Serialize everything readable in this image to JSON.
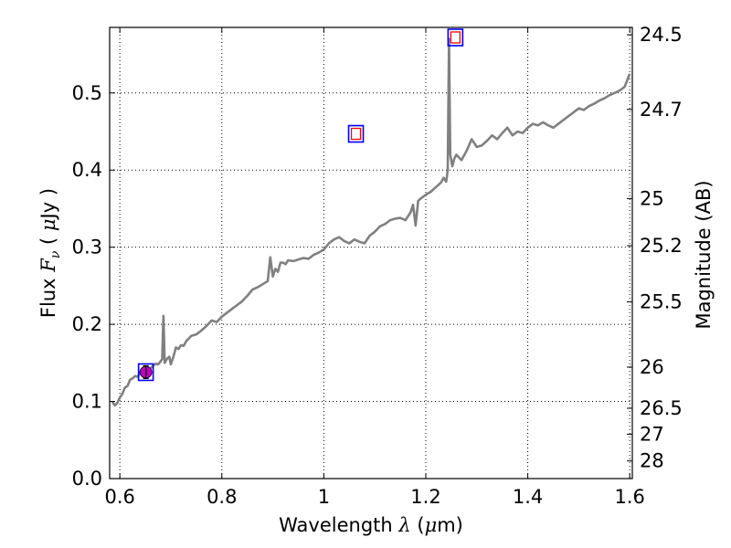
{
  "chart_data": {
    "type": "line",
    "xlabel_prefix": "Wavelength ",
    "xlabel_var": "λ",
    "xlabel_unit_open": " (",
    "xlabel_unit_mu": "μ",
    "xlabel_unit_close": "m)",
    "ylabel_prefix": "Flux ",
    "ylabel_var_main": "F",
    "ylabel_var_sub": "ν",
    "ylabel_unit_open": " ( ",
    "ylabel_unit_mu": "μ",
    "ylabel_unit_close": "Jy )",
    "y2label": "Magnitude (AB)",
    "xlim": [
      0.58,
      1.605
    ],
    "ylim": [
      0.0,
      0.585
    ],
    "grid": true,
    "x_ticks": [
      0.6,
      0.8,
      1.0,
      1.2,
      1.4,
      1.6
    ],
    "x_tick_labels": [
      "0.6",
      "0.8",
      "1",
      "1.2",
      "1.4",
      "1.6"
    ],
    "y_ticks": [
      0.0,
      0.1,
      0.2,
      0.3,
      0.4,
      0.5
    ],
    "y_tick_labels": [
      "0.0",
      "0.1",
      "0.2",
      "0.3",
      "0.4",
      "0.5"
    ],
    "y2_ticks": [
      {
        "label": "24.5",
        "mag": 24.5
      },
      {
        "label": "24.7",
        "mag": 24.7
      },
      {
        "label": "25",
        "mag": 25.0
      },
      {
        "label": "25.2",
        "mag": 25.2
      },
      {
        "label": "25.5",
        "mag": 25.5
      },
      {
        "label": "26",
        "mag": 26.0
      },
      {
        "label": "26.5",
        "mag": 26.5
      },
      {
        "label": "27",
        "mag": 27.0
      },
      {
        "label": "28",
        "mag": 28.0
      }
    ],
    "series": [
      {
        "kind": "spectrum",
        "color": "#808080",
        "x": [
          0.585,
          0.59,
          0.595,
          0.6,
          0.605,
          0.61,
          0.615,
          0.62,
          0.625,
          0.63,
          0.635,
          0.64,
          0.645,
          0.65,
          0.655,
          0.66,
          0.665,
          0.67,
          0.675,
          0.68,
          0.683,
          0.6855,
          0.688,
          0.692,
          0.697,
          0.7,
          0.705,
          0.71,
          0.715,
          0.72,
          0.725,
          0.73,
          0.74,
          0.75,
          0.76,
          0.77,
          0.78,
          0.79,
          0.8,
          0.81,
          0.82,
          0.83,
          0.84,
          0.85,
          0.86,
          0.87,
          0.88,
          0.89,
          0.895,
          0.9,
          0.905,
          0.91,
          0.915,
          0.92,
          0.925,
          0.93,
          0.94,
          0.95,
          0.96,
          0.97,
          0.98,
          0.99,
          1.0,
          1.01,
          1.02,
          1.03,
          1.04,
          1.05,
          1.06,
          1.07,
          1.08,
          1.09,
          1.1,
          1.11,
          1.12,
          1.13,
          1.14,
          1.15,
          1.16,
          1.17,
          1.175,
          1.18,
          1.185,
          1.19,
          1.2,
          1.21,
          1.22,
          1.23,
          1.235,
          1.24,
          1.243,
          1.2455,
          1.248,
          1.252,
          1.256,
          1.26,
          1.27,
          1.28,
          1.29,
          1.3,
          1.31,
          1.32,
          1.33,
          1.34,
          1.35,
          1.36,
          1.37,
          1.38,
          1.39,
          1.4,
          1.41,
          1.42,
          1.43,
          1.44,
          1.45,
          1.46,
          1.47,
          1.48,
          1.49,
          1.5,
          1.51,
          1.52,
          1.53,
          1.54,
          1.55,
          1.56,
          1.57,
          1.58,
          1.59,
          1.6
        ],
        "y": [
          0.1,
          0.095,
          0.098,
          0.105,
          0.11,
          0.118,
          0.12,
          0.128,
          0.13,
          0.133,
          0.132,
          0.138,
          0.14,
          0.138,
          0.142,
          0.143,
          0.146,
          0.149,
          0.148,
          0.152,
          0.155,
          0.211,
          0.15,
          0.155,
          0.158,
          0.148,
          0.158,
          0.17,
          0.168,
          0.173,
          0.172,
          0.178,
          0.185,
          0.187,
          0.192,
          0.198,
          0.205,
          0.203,
          0.21,
          0.215,
          0.22,
          0.225,
          0.23,
          0.237,
          0.245,
          0.248,
          0.252,
          0.256,
          0.287,
          0.262,
          0.272,
          0.268,
          0.28,
          0.28,
          0.278,
          0.283,
          0.282,
          0.284,
          0.286,
          0.285,
          0.29,
          0.293,
          0.297,
          0.305,
          0.31,
          0.313,
          0.308,
          0.305,
          0.31,
          0.307,
          0.305,
          0.315,
          0.32,
          0.327,
          0.33,
          0.335,
          0.337,
          0.338,
          0.335,
          0.345,
          0.355,
          0.328,
          0.36,
          0.363,
          0.368,
          0.372,
          0.378,
          0.384,
          0.39,
          0.385,
          0.4,
          0.57,
          0.42,
          0.405,
          0.415,
          0.42,
          0.413,
          0.425,
          0.44,
          0.43,
          0.432,
          0.438,
          0.445,
          0.44,
          0.448,
          0.455,
          0.445,
          0.45,
          0.448,
          0.455,
          0.46,
          0.458,
          0.462,
          0.458,
          0.455,
          0.46,
          0.465,
          0.47,
          0.475,
          0.48,
          0.478,
          0.483,
          0.486,
          0.49,
          0.493,
          0.497,
          0.5,
          0.503,
          0.508,
          0.525
        ]
      },
      {
        "kind": "photometry-boxes",
        "edge": "#0000ff",
        "points": [
          {
            "x": 0.651,
            "y": 0.138
          },
          {
            "x": 1.063,
            "y": 0.447
          },
          {
            "x": 1.258,
            "y": 0.572
          }
        ]
      },
      {
        "kind": "model-boxes",
        "edge": "#ff0000",
        "points": [
          {
            "x": 1.063,
            "y": 0.447
          },
          {
            "x": 1.258,
            "y": 0.572
          }
        ]
      },
      {
        "kind": "observed",
        "color": "#bf00bf",
        "points": [
          {
            "x": 0.651,
            "y": 0.138,
            "err": 0.008
          }
        ]
      }
    ]
  }
}
